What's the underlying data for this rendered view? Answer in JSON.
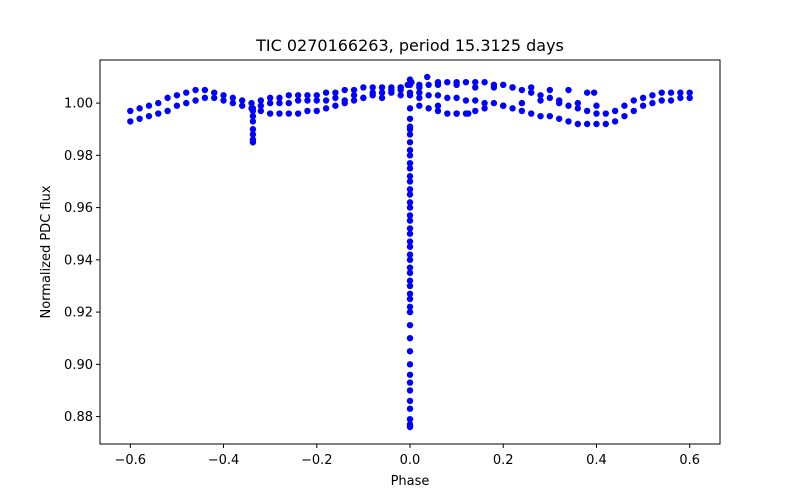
{
  "chart_data": {
    "type": "scatter",
    "title": "TIC 0270166263, period 15.3125 days",
    "xlabel": "Phase",
    "ylabel": "Normalized PDC flux",
    "xlim": [
      -0.665,
      0.665
    ],
    "ylim": [
      0.8695,
      1.0165
    ],
    "xticks": [
      -0.6,
      -0.4,
      -0.2,
      0.0,
      0.2,
      0.4,
      0.6
    ],
    "xtick_labels": [
      "−0.6",
      "−0.4",
      "−0.2",
      "0.0",
      "0.2",
      "0.4",
      "0.6"
    ],
    "yticks": [
      0.88,
      0.9,
      0.92,
      0.94,
      0.96,
      0.98,
      1.0
    ],
    "ytick_labels": [
      "0.88",
      "0.90",
      "0.92",
      "0.94",
      "0.96",
      "0.98",
      "1.00"
    ],
    "marker_color": "#0000ff",
    "series": [
      {
        "name": "flux",
        "x": [
          -0.6,
          -0.58,
          -0.56,
          -0.54,
          -0.52,
          -0.5,
          -0.48,
          -0.46,
          -0.44,
          -0.42,
          -0.4,
          -0.38,
          -0.36,
          -0.34,
          -0.32,
          -0.3,
          -0.28,
          -0.26,
          -0.24,
          -0.22,
          -0.2,
          -0.18,
          -0.16,
          -0.14,
          -0.12,
          -0.1,
          -0.08,
          -0.06,
          -0.04,
          -0.02,
          0.0,
          0.02,
          0.04,
          0.06,
          0.08,
          0.1,
          0.12,
          0.14,
          0.16,
          0.18,
          0.2,
          0.22,
          0.24,
          0.26,
          0.28,
          0.3,
          0.32,
          0.34,
          0.36,
          0.38,
          0.4,
          0.42,
          0.44,
          0.46,
          0.48,
          0.5,
          0.52,
          0.54,
          0.56,
          0.58,
          0.6,
          -0.6,
          -0.58,
          -0.56,
          -0.54,
          -0.52,
          -0.5,
          -0.48,
          -0.46,
          -0.44,
          -0.42,
          -0.4,
          -0.38,
          -0.36,
          -0.34,
          -0.32,
          -0.3,
          -0.28,
          -0.26,
          -0.24,
          -0.22,
          -0.2,
          -0.18,
          -0.16,
          -0.14,
          -0.12,
          -0.1,
          -0.08,
          -0.06,
          -0.04,
          -0.02,
          0.0,
          0.02,
          0.04,
          0.06,
          0.08,
          0.1,
          0.12,
          0.14,
          0.16,
          0.18,
          0.2,
          0.22,
          0.24,
          0.26,
          0.28,
          0.3,
          0.32,
          0.34,
          0.36,
          0.38,
          0.4,
          0.42,
          0.44,
          0.46,
          0.48,
          0.5,
          0.52,
          0.54,
          0.56,
          0.58,
          0.6,
          -0.32,
          -0.28,
          -0.24,
          -0.2,
          -0.16,
          -0.12,
          -0.08,
          -0.04,
          -0.02,
          0.02,
          0.06,
          0.1,
          0.14,
          0.18,
          0.22,
          0.26,
          0.3,
          0.34,
          0.38,
          0.395,
          0.02,
          0.04,
          0.06,
          0.08,
          0.1,
          0.12,
          0.14,
          0.16,
          0.2,
          0.24,
          0.28,
          0.32,
          0.36,
          0.4,
          -0.3,
          -0.26,
          -0.22,
          -0.18,
          -0.14,
          -0.1,
          -0.06,
          -0.02,
          0.02,
          0.06,
          0.1,
          0.125,
          -0.337,
          -0.337,
          -0.337,
          -0.337,
          -0.337,
          -0.337,
          -0.337,
          -0.337,
          0.0,
          0.0,
          0.0,
          0.0,
          0.0,
          0.0,
          0.0,
          0.0,
          0.0,
          0.0,
          0.0,
          0.0,
          0.0,
          0.0,
          0.0,
          0.0,
          0.0,
          0.0,
          0.0,
          0.0,
          0.0,
          0.0,
          0.0,
          0.0,
          0.0,
          0.0,
          0.0,
          0.0,
          0.0,
          0.0,
          0.0,
          0.0,
          0.0,
          0.0,
          0.0,
          0.0,
          0.0,
          0.0,
          0.0,
          0.0,
          0.0,
          0.0,
          0.0,
          0.0,
          0.0,
          0.037,
          -0.005,
          0.003,
          0.0
        ],
        "y": [
          0.997,
          0.998,
          0.999,
          1.0,
          1.002,
          1.003,
          1.004,
          1.005,
          1.005,
          1.004,
          1.003,
          1.002,
          1.001,
          1.0,
          1.001,
          1.002,
          1.002,
          1.003,
          1.003,
          1.003,
          1.003,
          1.004,
          1.004,
          1.005,
          1.005,
          1.006,
          1.006,
          1.006,
          1.006,
          1.006,
          1.007,
          1.007,
          1.007,
          1.008,
          1.008,
          1.008,
          1.008,
          1.008,
          1.008,
          1.007,
          1.007,
          1.006,
          1.005,
          1.004,
          1.003,
          1.002,
          1.0,
          0.999,
          0.998,
          0.997,
          0.996,
          0.996,
          0.997,
          0.999,
          1.001,
          1.002,
          1.003,
          1.004,
          1.004,
          1.004,
          1.004,
          0.993,
          0.994,
          0.995,
          0.996,
          0.997,
          0.999,
          1.0,
          1.001,
          1.002,
          1.002,
          1.001,
          1.0,
          0.999,
          0.998,
          0.997,
          0.996,
          0.996,
          0.996,
          0.996,
          0.997,
          0.997,
          0.998,
          0.999,
          1.0,
          1.001,
          1.002,
          1.003,
          1.004,
          1.004,
          1.005,
          1.004,
          1.004,
          1.003,
          1.003,
          1.002,
          1.002,
          1.001,
          1.001,
          1.0,
          1.0,
          0.999,
          0.998,
          0.997,
          0.996,
          0.995,
          0.995,
          0.994,
          0.993,
          0.992,
          0.992,
          0.992,
          0.992,
          0.993,
          0.995,
          0.997,
          0.999,
          1.0,
          1.001,
          1.001,
          1.002,
          1.002,
          0.999,
          1.0,
          1.001,
          1.001,
          1.002,
          1.003,
          1.004,
          1.005,
          1.006,
          1.006,
          1.007,
          1.007,
          1.006,
          1.006,
          1.006,
          1.006,
          1.005,
          1.005,
          1.004,
          1.004,
          0.999,
          0.998,
          0.997,
          0.996,
          0.996,
          0.996,
          0.997,
          0.998,
          0.999,
          1.0,
          1.001,
          1.001,
          1.0,
          0.999,
          1.0,
          1.0,
          1.001,
          1.001,
          1.001,
          1.002,
          1.002,
          1.003,
          1.002,
          0.999,
          0.996,
          0.996,
          0.998,
          0.995,
          0.993,
          0.99,
          0.988,
          0.986,
          0.985,
          0.997,
          1.009,
          1.003,
          0.998,
          0.994,
          0.991,
          0.99,
          0.988,
          0.985,
          0.982,
          0.98,
          0.977,
          0.975,
          0.972,
          0.97,
          0.967,
          0.965,
          0.962,
          0.96,
          0.957,
          0.955,
          0.952,
          0.95,
          0.947,
          0.945,
          0.942,
          0.94,
          0.937,
          0.935,
          0.932,
          0.93,
          0.927,
          0.925,
          0.922,
          0.92,
          0.915,
          0.91,
          0.905,
          0.9,
          0.896,
          0.893,
          0.89,
          0.886,
          0.883,
          0.879,
          0.876,
          1.01,
          1.007,
          1.008,
          0.877
        ]
      }
    ]
  }
}
